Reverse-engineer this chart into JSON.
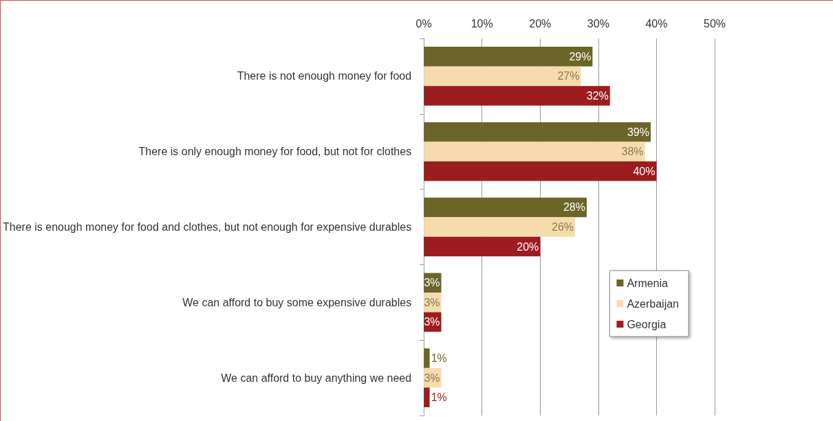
{
  "chart_data": {
    "type": "bar",
    "orientation": "horizontal",
    "categories": [
      "There is not enough money for food",
      "There is only enough money for food, but not for clothes",
      "There is enough money for food and clothes, but not enough for expensive durables",
      "We can afford to buy some expensive durables",
      "We can afford to buy anything we need"
    ],
    "series": [
      {
        "name": "Armenia",
        "color": "#6b6529",
        "values": [
          29,
          39,
          28,
          3,
          1
        ],
        "value_labels": [
          "29%",
          "39%",
          "28%",
          "3%",
          "1%"
        ]
      },
      {
        "name": "Azerbaijan",
        "color": "#f6dcac",
        "values": [
          27,
          38,
          26,
          3,
          3
        ],
        "value_labels": [
          "27%",
          "38%",
          "26%",
          "3%",
          "3%"
        ]
      },
      {
        "name": "Georgia",
        "color": "#9c1c20",
        "values": [
          32,
          40,
          20,
          3,
          1
        ],
        "value_labels": [
          "32%",
          "40%",
          "20%",
          "3%",
          "1%"
        ]
      }
    ],
    "xlim": [
      0,
      50
    ],
    "xticks": [
      {
        "value": 0,
        "label": "0%"
      },
      {
        "value": 10,
        "label": "10%"
      },
      {
        "value": 20,
        "label": "20%"
      },
      {
        "value": 30,
        "label": "30%"
      },
      {
        "value": 40,
        "label": "40%"
      },
      {
        "value": 50,
        "label": "50%"
      }
    ],
    "grid": "x",
    "legend": "right"
  }
}
